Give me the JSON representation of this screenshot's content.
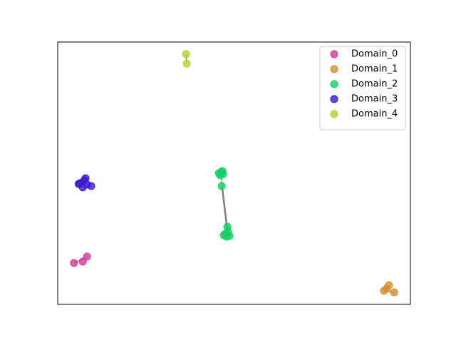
{
  "chart_data": {
    "type": "scatter",
    "series": [
      {
        "name": "Domain_0",
        "color": "#d4379b",
        "x": [
          0.046,
          0.071,
          0.083
        ],
        "y": [
          0.158,
          0.163,
          0.182
        ]
      },
      {
        "name": "Domain_1",
        "color": "#d98c2a",
        "x": [
          0.925,
          0.939,
          0.954,
          0.933
        ],
        "y": [
          0.052,
          0.073,
          0.046,
          0.06
        ]
      },
      {
        "name": "Domain_2",
        "color": "#12d160",
        "x": [
          0.457,
          0.463,
          0.469,
          0.461,
          0.467,
          0.465,
          0.475,
          0.483,
          0.487,
          0.479,
          0.481,
          0.471
        ],
        "y": [
          0.5,
          0.505,
          0.497,
          0.492,
          0.508,
          0.451,
          0.269,
          0.277,
          0.261,
          0.258,
          0.296,
          0.264
        ]
      },
      {
        "name": "Domain_3",
        "color": "#3a16d6",
        "x": [
          0.063,
          0.075,
          0.083,
          0.071,
          0.095,
          0.079,
          0.059
        ],
        "y": [
          0.462,
          0.473,
          0.457,
          0.446,
          0.451,
          0.481,
          0.459
        ]
      },
      {
        "name": "Domain_4",
        "color": "#b3d42a",
        "x": [
          0.364,
          0.366
        ],
        "y": [
          0.954,
          0.918
        ]
      }
    ],
    "xlim": [
      0,
      1
    ],
    "ylim": [
      0,
      1
    ],
    "legend": "upper right"
  }
}
